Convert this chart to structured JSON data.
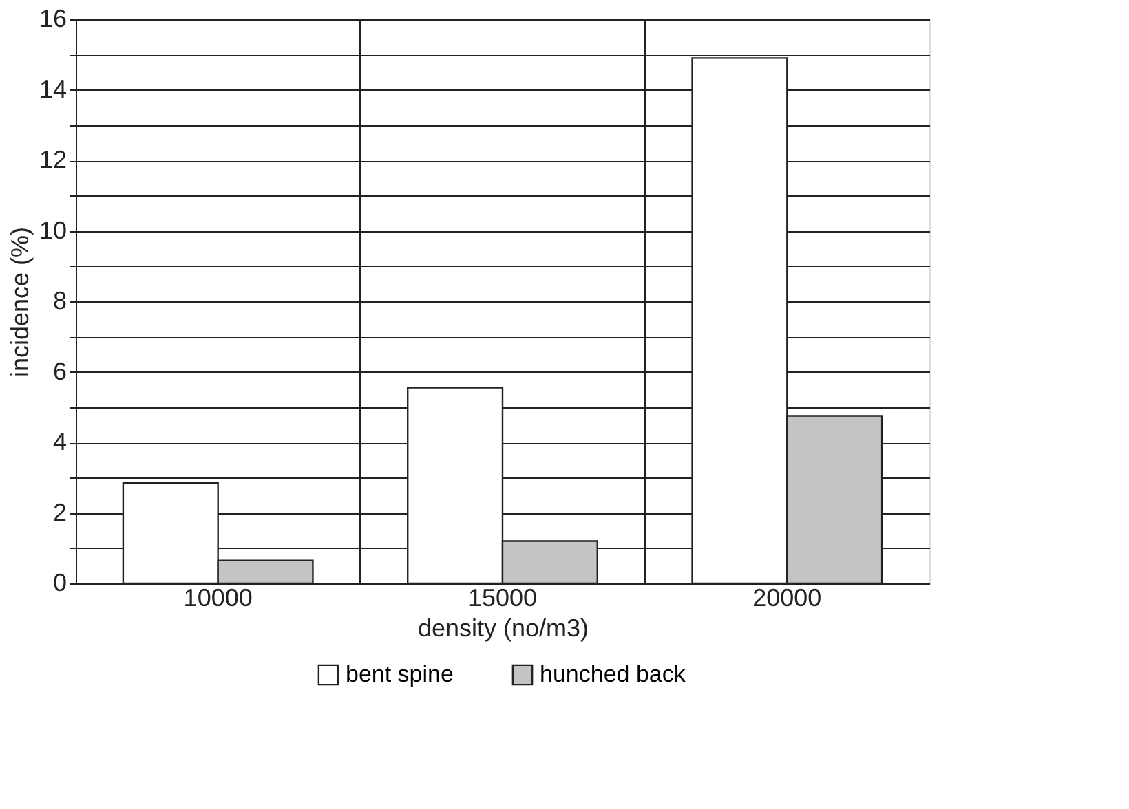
{
  "chart_data": {
    "type": "bar",
    "xlabel": "density (no/m3)",
    "ylabel": "incidence (%)",
    "categories": [
      "10000",
      "15000",
      "20000"
    ],
    "series": [
      {
        "name": "bent spine",
        "color": "#ffffff",
        "values": [
          2.85,
          5.55,
          14.9
        ]
      },
      {
        "name": "hunched back",
        "color": "#c4c4c4",
        "values": [
          0.65,
          1.2,
          4.75
        ]
      }
    ],
    "ylim": [
      0,
      16
    ],
    "yticks": [
      0,
      {
        "value": 1,
        "label": null
      },
      2,
      {
        "value": 3,
        "label": null
      },
      4,
      {
        "value": 5,
        "label": null
      },
      6,
      {
        "value": 7,
        "label": null
      },
      8,
      {
        "value": 9,
        "label": null
      },
      10,
      {
        "value": 11,
        "label": null
      },
      12,
      {
        "value": 13,
        "label": null
      },
      14,
      {
        "value": 15,
        "label": null
      },
      16
    ],
    "grid": true,
    "legend": "bottom"
  }
}
